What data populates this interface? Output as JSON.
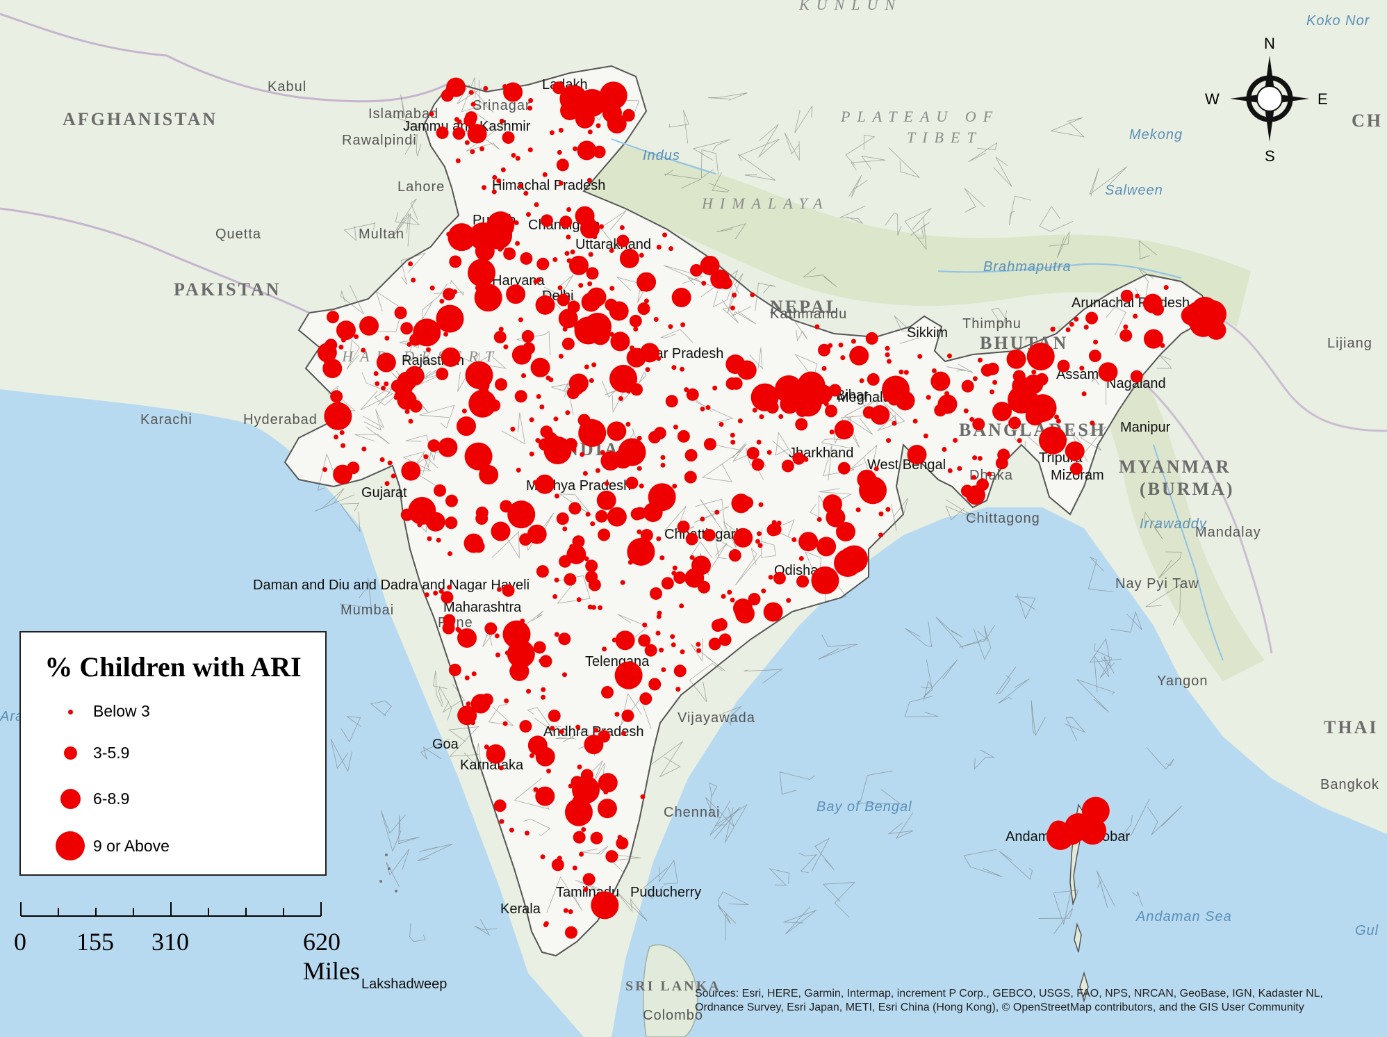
{
  "legend": {
    "title": "% Children with ARI",
    "items": [
      {
        "label": "Below 3",
        "class": "below-3"
      },
      {
        "label": "3-5.9",
        "class": "3-5.9"
      },
      {
        "label": "6-8.9",
        "class": "6-8.9"
      },
      {
        "label": "9 or Above",
        "class": "9-or-above"
      }
    ]
  },
  "scale_bar": {
    "labels": [
      "0",
      "155",
      "310",
      "620 Miles"
    ]
  },
  "compass": {
    "n": "N",
    "s": "S",
    "e": "E",
    "w": "W"
  },
  "attribution": "Sources: Esri, HERE, Garmin, Intermap, increment P Corp., GEBCO, USGS, FAO, NPS, NRCAN, GeoBase, IGN, Kadaster NL, Ordnance Survey, Esri Japan, METI, Esri China (Hong Kong), © OpenStreetMap contributors, and the GIS User Community",
  "colors": {
    "dot": "#ee0000",
    "water": "#b8daf0",
    "land": "#ebefe4",
    "india": "#f7f7f3",
    "mountain": "#d9e4c8"
  },
  "basemap_labels": {
    "countries": [
      "AFGHANISTAN",
      "PAKISTAN",
      "NEPAL",
      "BHUTAN",
      "BANGLADESH",
      "MYANMAR",
      "(BURMA)",
      "INDIA",
      "SRI LANKA",
      "CH",
      "THAI",
      "PLATEAU OF",
      "TIBET",
      "HIMALAYA",
      "THAR DESERT",
      "KUNLUN",
      "Koko Nor"
    ],
    "cities": [
      "Kabul",
      "Islamabad",
      "Rawalpindi",
      "Lahore",
      "Quetta",
      "Multan",
      "Karachi",
      "Hyderabad",
      "Kathmandu",
      "Thimphu",
      "Dhaka",
      "Chittagong",
      "Mandalay",
      "Nay Pyi Taw",
      "Yangon",
      "Bangkok",
      "Lijiang",
      "Mumbai",
      "Pune",
      "Vijayawada",
      "Chennai",
      "Colombo",
      "Srinagar"
    ],
    "water": [
      "Arabian Sea",
      "Bay of Bengal",
      "Andaman Sea",
      "Gul",
      "Indus",
      "Mekong",
      "Salween",
      "Brahmaputra",
      "Irrawaddy"
    ],
    "states": [
      "Ladakh",
      "Jammu and Kashmir",
      "Himachal Pradesh",
      "Punjab",
      "Chandigarh",
      "Uttarakhand",
      "Haryana",
      "Delhi",
      "Rajasthan",
      "Uttar Pradesh",
      "Sikkim",
      "Arunachal Pradesh",
      "Assam",
      "Nagaland",
      "Meghalaya",
      "Manipur",
      "Bihar",
      "Jharkhand",
      "West Bengal",
      "Tripura",
      "Mizoram",
      "Gujarat",
      "Madhya Pradesh",
      "Chhattisgarh",
      "Odisha",
      "Daman and Diu and Dadra and Nagar Haveli",
      "Maharashtra",
      "Telengana",
      "Andhra Pradesh",
      "Goa",
      "Karnataka",
      "Tamilnadu",
      "Puducherry",
      "Kerala",
      "Lakshadweep",
      "Andaman & Nicobar"
    ]
  },
  "highlighted_locations": [
    {
      "name": "Ladakh",
      "class": "9-or-above"
    },
    {
      "name": "Punjab",
      "class": "9-or-above"
    },
    {
      "name": "Uttar Pradesh",
      "class": "9-or-above"
    },
    {
      "name": "Bihar",
      "class": "9-or-above"
    },
    {
      "name": "Odisha",
      "class": "9-or-above"
    },
    {
      "name": "Meghalaya",
      "class": "9-or-above"
    },
    {
      "name": "Arunachal Pradesh",
      "class": "9-or-above"
    },
    {
      "name": "Andaman & Nicobar",
      "class": "9-or-above"
    }
  ]
}
